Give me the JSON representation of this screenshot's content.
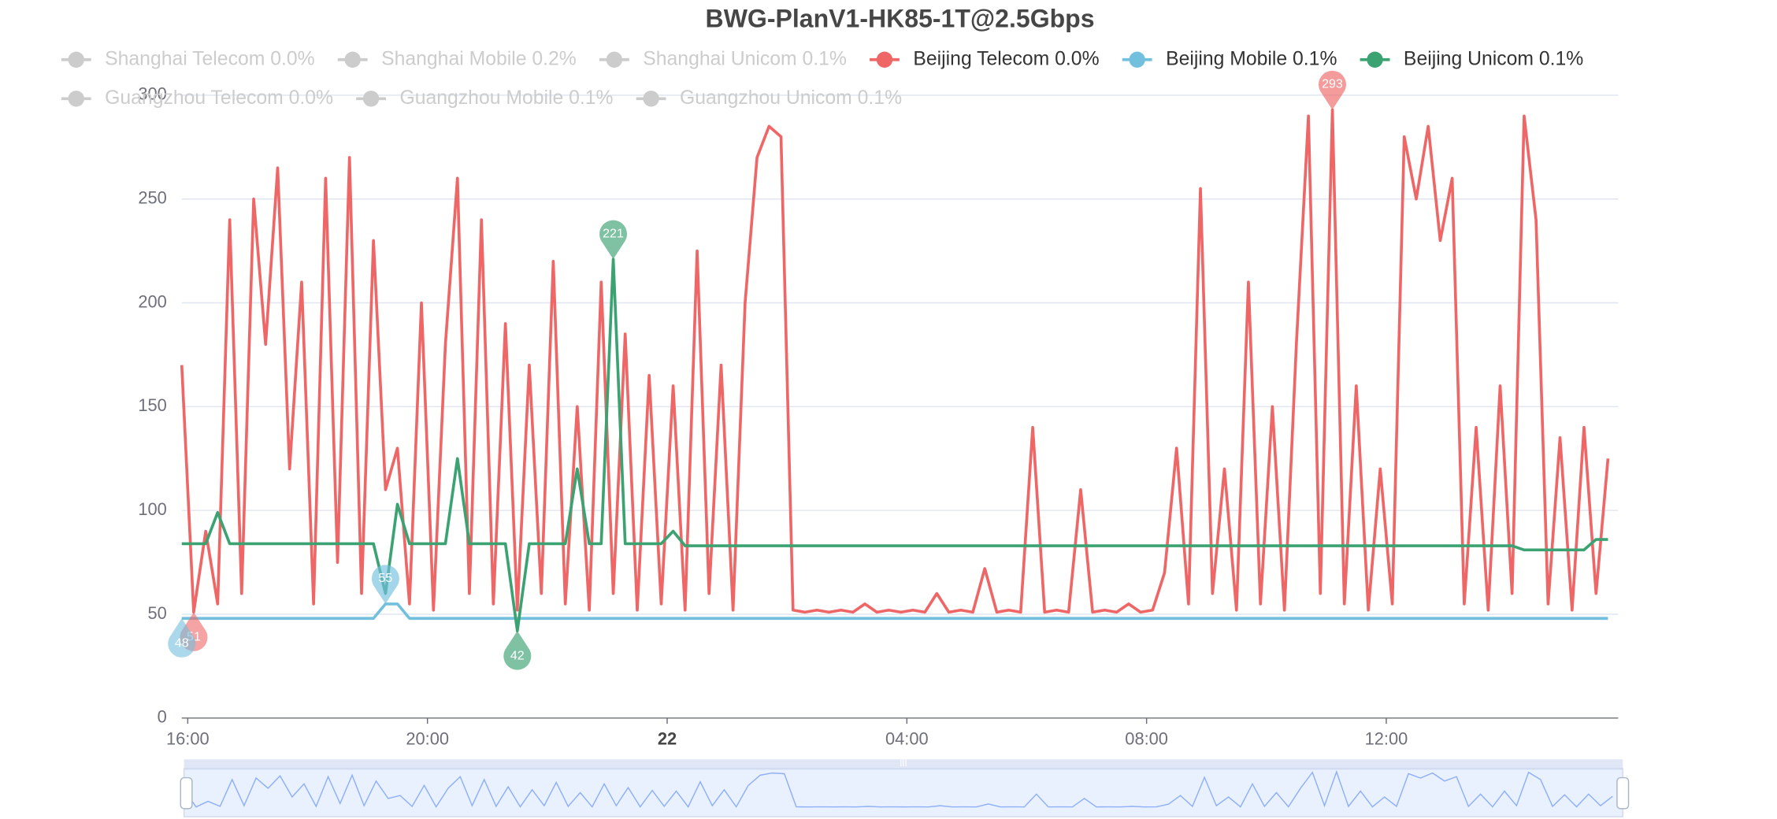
{
  "chart_data": {
    "type": "line",
    "title": "BWG-PlanV1-HK85-1T@2.5Gbps",
    "inactive_color": "#cccccc",
    "grid": true,
    "xlim": [
      15.9,
      39.87
    ],
    "xticks": [
      {
        "value": 16,
        "label": "16:00"
      },
      {
        "value": 20,
        "label": "20:00"
      },
      {
        "value": 24,
        "label": "22",
        "bold": true
      },
      {
        "value": 28,
        "label": "04:00"
      },
      {
        "value": 32,
        "label": "08:00"
      },
      {
        "value": 36,
        "label": "12:00"
      }
    ],
    "ylim": [
      0,
      300
    ],
    "yticks": [
      0,
      50,
      100,
      150,
      200,
      250,
      300
    ],
    "x": [
      15.9,
      16.1,
      16.3,
      16.5,
      16.7,
      16.9,
      17.1,
      17.3,
      17.5,
      17.7,
      17.9,
      18.1,
      18.3,
      18.5,
      18.7,
      18.9,
      19.1,
      19.3,
      19.5,
      19.7,
      19.9,
      20.1,
      20.3,
      20.5,
      20.7,
      20.9,
      21.1,
      21.3,
      21.5,
      21.7,
      21.9,
      22.1,
      22.3,
      22.5,
      22.7,
      22.9,
      23.1,
      23.3,
      23.5,
      23.7,
      23.9,
      24.1,
      24.3,
      24.5,
      24.7,
      24.9,
      25.1,
      25.3,
      25.5,
      25.7,
      25.9,
      26.1,
      26.3,
      26.5,
      26.7,
      26.9,
      27.1,
      27.3,
      27.5,
      27.7,
      27.9,
      28.1,
      28.3,
      28.5,
      28.7,
      28.9,
      29.1,
      29.3,
      29.5,
      29.7,
      29.9,
      30.1,
      30.3,
      30.5,
      30.7,
      30.9,
      31.1,
      31.3,
      31.5,
      31.7,
      31.9,
      32.1,
      32.3,
      32.5,
      32.7,
      32.9,
      33.1,
      33.3,
      33.5,
      33.7,
      33.9,
      34.1,
      34.3,
      34.5,
      34.7,
      34.9,
      35.1,
      35.3,
      35.5,
      35.7,
      35.9,
      36.1,
      36.3,
      36.5,
      36.7,
      36.9,
      37.1,
      37.3,
      37.5,
      37.7,
      37.9,
      38.1,
      38.3,
      38.5,
      38.7,
      38.9,
      39.1,
      39.3,
      39.5,
      39.7
    ],
    "series": [
      {
        "name": "Shanghai Telecom 0.0%",
        "visible": false
      },
      {
        "name": "Shanghai Mobile 0.2%",
        "visible": false
      },
      {
        "name": "Shanghai Unicom 0.1%",
        "visible": false
      },
      {
        "name": "Beijing Telecom 0.0%",
        "visible": true,
        "color": "#ee6666",
        "values": [
          170,
          51,
          90,
          55,
          240,
          60,
          250,
          180,
          265,
          120,
          210,
          55,
          260,
          75,
          270,
          60,
          230,
          110,
          130,
          55,
          200,
          52,
          180,
          260,
          60,
          240,
          55,
          190,
          52,
          170,
          60,
          220,
          55,
          150,
          52,
          210,
          60,
          185,
          52,
          165,
          55,
          160,
          52,
          225,
          60,
          170,
          52,
          200,
          270,
          285,
          280,
          52,
          51,
          52,
          51,
          52,
          51,
          55,
          51,
          52,
          51,
          52,
          51,
          60,
          51,
          52,
          51,
          72,
          51,
          52,
          51,
          140,
          51,
          52,
          51,
          110,
          51,
          52,
          51,
          55,
          51,
          52,
          70,
          130,
          55,
          255,
          60,
          120,
          52,
          210,
          55,
          150,
          52,
          180,
          290,
          60,
          293,
          55,
          160,
          52,
          120,
          55,
          280,
          250,
          285,
          230,
          260,
          55,
          140,
          52,
          160,
          60,
          290,
          240,
          55,
          135,
          52,
          140,
          60,
          125
        ]
      },
      {
        "name": "Beijing Mobile 0.1%",
        "visible": true,
        "color": "#73c0de",
        "values": [
          48,
          48,
          48,
          48,
          48,
          48,
          48,
          48,
          48,
          48,
          48,
          48,
          48,
          48,
          48,
          48,
          48,
          55,
          55,
          48,
          48,
          48,
          48,
          48,
          48,
          48,
          48,
          48,
          48,
          48,
          48,
          48,
          48,
          48,
          48,
          48,
          48,
          48,
          48,
          48,
          48,
          48,
          48,
          48,
          48,
          48,
          48,
          48,
          48,
          48,
          48,
          48,
          48,
          48,
          48,
          48,
          48,
          48,
          48,
          48,
          48,
          48,
          48,
          48,
          48,
          48,
          48,
          48,
          48,
          48,
          48,
          48,
          48,
          48,
          48,
          48,
          48,
          48,
          48,
          48,
          48,
          48,
          48,
          48,
          48,
          48,
          48,
          48,
          48,
          48,
          48,
          48,
          48,
          48,
          48,
          48,
          48,
          48,
          48,
          48,
          48,
          48,
          48,
          48,
          48,
          48,
          48,
          48,
          48,
          48,
          48,
          48,
          48,
          48,
          48,
          48,
          48,
          48,
          48,
          48
        ]
      },
      {
        "name": "Beijing Unicom 0.1%",
        "visible": true,
        "color": "#3ba272",
        "values": [
          84,
          84,
          84,
          99,
          84,
          84,
          84,
          84,
          84,
          84,
          84,
          84,
          84,
          84,
          84,
          84,
          84,
          60,
          103,
          84,
          84,
          84,
          84,
          125,
          84,
          84,
          84,
          84,
          42,
          84,
          84,
          84,
          84,
          120,
          84,
          84,
          221,
          84,
          84,
          84,
          84,
          90,
          83,
          83,
          83,
          83,
          83,
          83,
          83,
          83,
          83,
          83,
          83,
          83,
          83,
          83,
          83,
          83,
          83,
          83,
          83,
          83,
          83,
          83,
          83,
          83,
          83,
          83,
          83,
          83,
          83,
          83,
          83,
          83,
          83,
          83,
          83,
          83,
          83,
          83,
          83,
          83,
          83,
          83,
          83,
          83,
          83,
          83,
          83,
          83,
          83,
          83,
          83,
          83,
          83,
          83,
          83,
          83,
          83,
          83,
          83,
          83,
          83,
          83,
          83,
          83,
          83,
          83,
          83,
          83,
          83,
          83,
          81,
          81,
          81,
          81,
          81,
          81,
          86,
          86
        ]
      },
      {
        "name": "Guangzhou Telecom 0.0%",
        "visible": false
      },
      {
        "name": "Guangzhou Mobile 0.1%",
        "visible": false
      },
      {
        "name": "Guangzhou Unicom 0.1%",
        "visible": false
      }
    ],
    "mark_points": [
      {
        "series": 3,
        "index": 1,
        "kind": "min"
      },
      {
        "series": 3,
        "index": 96,
        "kind": "max"
      },
      {
        "series": 4,
        "index": 0,
        "kind": "min"
      },
      {
        "series": 4,
        "index": 17,
        "kind": "max"
      },
      {
        "series": 5,
        "index": 28,
        "kind": "min"
      },
      {
        "series": 5,
        "index": 36,
        "kind": "max"
      }
    ]
  }
}
